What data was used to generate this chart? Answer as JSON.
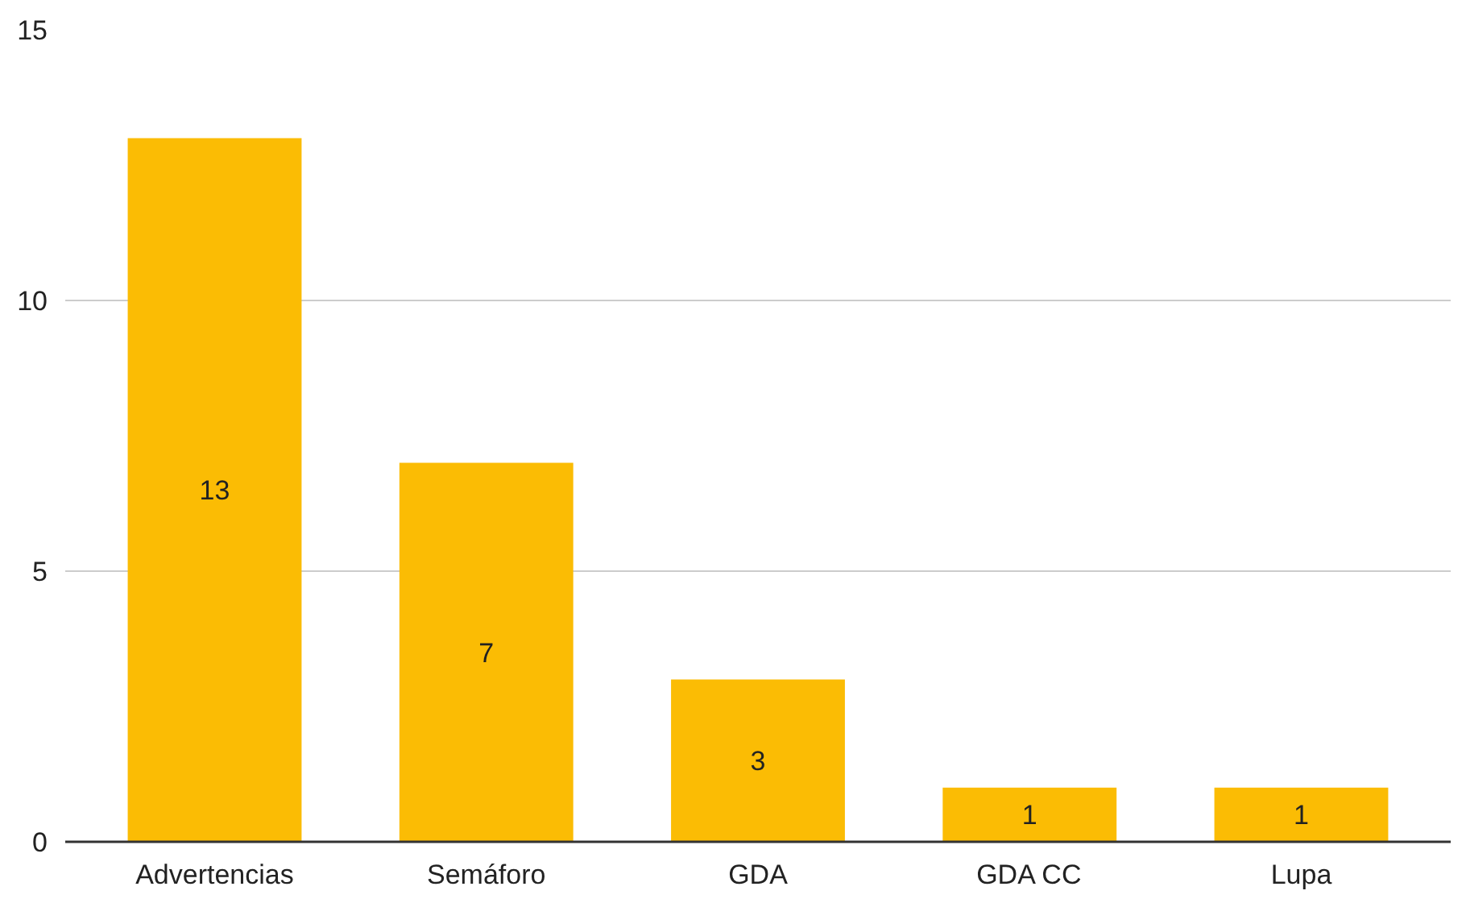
{
  "chart_data": {
    "type": "bar",
    "categories": [
      "Advertencias",
      "Semáforo",
      "GDA",
      "GDA CC",
      "Lupa"
    ],
    "values": [
      13,
      7,
      3,
      1,
      1
    ],
    "color": "#fbbc04",
    "ylim": [
      0,
      15
    ],
    "yticks": [
      0,
      5,
      10,
      15
    ],
    "grid": "y",
    "data_labels": true
  }
}
